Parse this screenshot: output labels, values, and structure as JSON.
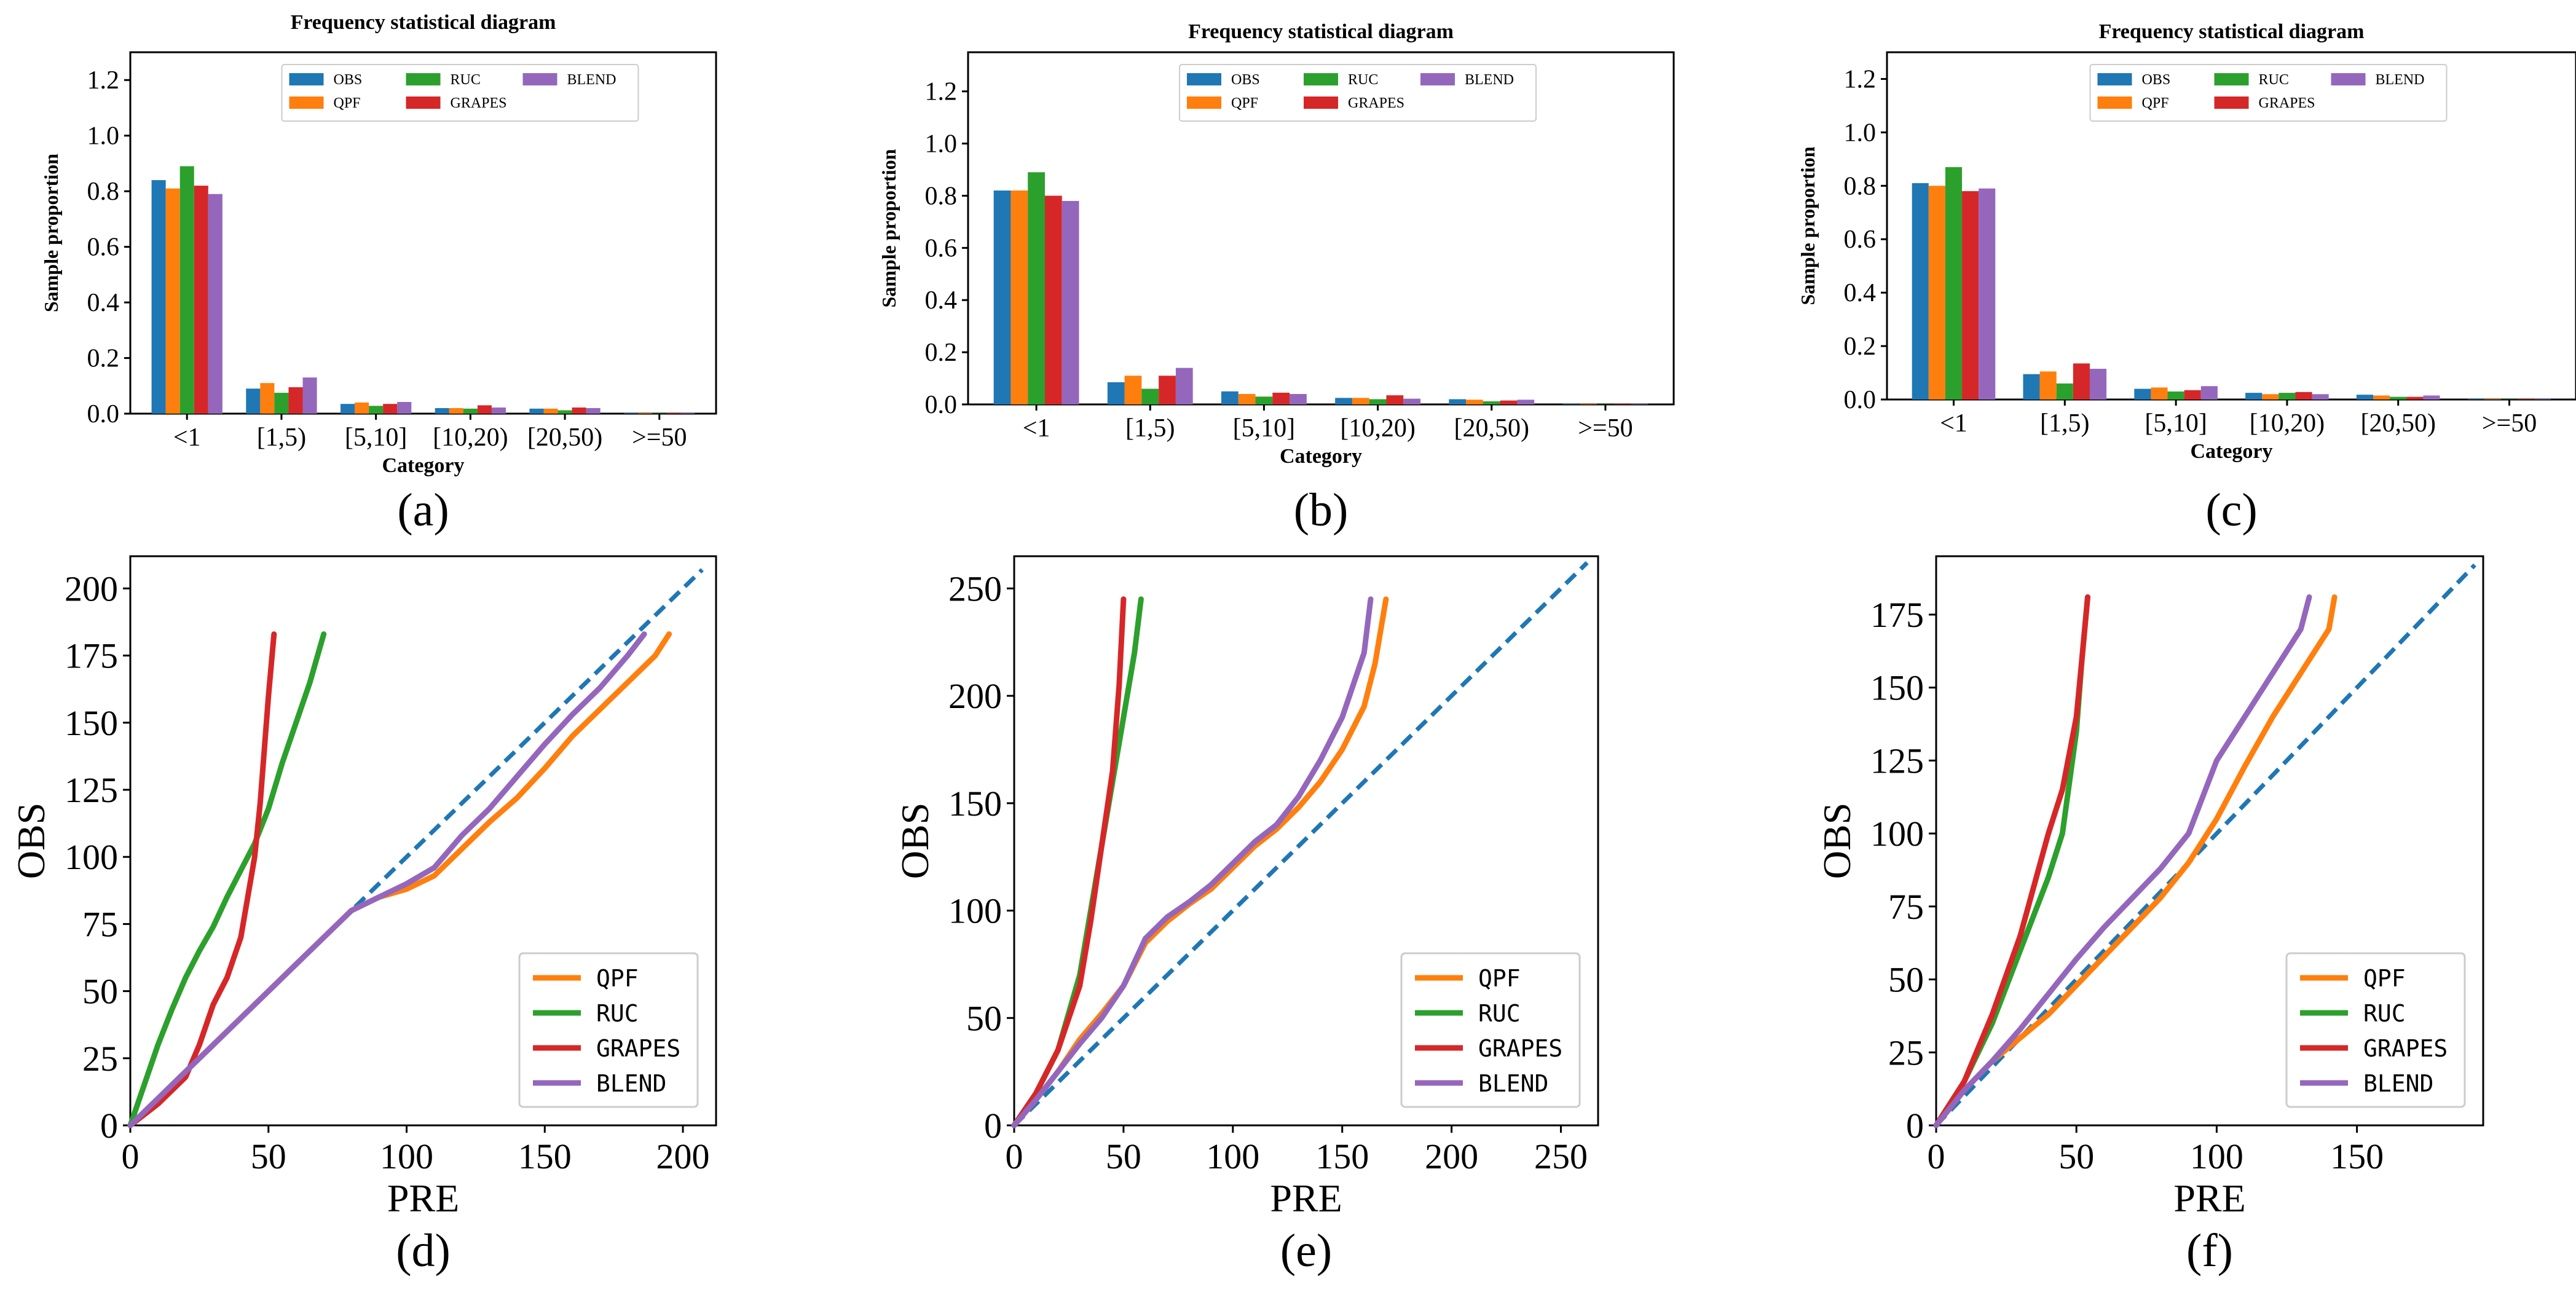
{
  "colors": {
    "OBS": "#1f77b4",
    "QPF": "#ff7f0e",
    "RUC": "#2ca02c",
    "GRAPES": "#d62728",
    "BLEND": "#9467bd",
    "diagonal": "#1f77b4",
    "axis": "#000000"
  },
  "chart_data": [
    {
      "id": "a",
      "panel_label": "(a)",
      "type": "bar",
      "title": "Frequency statistical diagram",
      "xlabel": "Category",
      "ylabel": "Sample proportion",
      "categories": [
        "<1",
        "[1,5)",
        "[5,10]",
        "[10,20)",
        "[20,50)",
        ">=50"
      ],
      "ylim": [
        0,
        1.3
      ],
      "yticks": [
        0.0,
        0.2,
        0.4,
        0.6,
        0.8,
        1.0,
        1.2
      ],
      "ytick_labels": [
        "0.0",
        "0.2",
        "0.4",
        "0.6",
        "0.8",
        "1.0",
        "1.2"
      ],
      "legend_position": "top-center",
      "series": [
        {
          "name": "OBS",
          "values": [
            0.84,
            0.09,
            0.035,
            0.02,
            0.018,
            0.002
          ]
        },
        {
          "name": "QPF",
          "values": [
            0.81,
            0.11,
            0.04,
            0.02,
            0.018,
            0.002
          ]
        },
        {
          "name": "RUC",
          "values": [
            0.89,
            0.075,
            0.028,
            0.018,
            0.012,
            0.001
          ]
        },
        {
          "name": "GRAPES",
          "values": [
            0.82,
            0.095,
            0.035,
            0.03,
            0.022,
            0.002
          ]
        },
        {
          "name": "BLEND",
          "values": [
            0.79,
            0.13,
            0.042,
            0.022,
            0.02,
            0.002
          ]
        }
      ]
    },
    {
      "id": "b",
      "panel_label": "(b)",
      "type": "bar",
      "title": "Frequency statistical diagram",
      "xlabel": "Category",
      "ylabel": "Sample proportion",
      "categories": [
        "<1",
        "[1,5)",
        "[5,10]",
        "[10,20)",
        "[20,50)",
        ">=50"
      ],
      "ylim": [
        0,
        1.35
      ],
      "yticks": [
        0.0,
        0.2,
        0.4,
        0.6,
        0.8,
        1.0,
        1.2
      ],
      "ytick_labels": [
        "0.0",
        "0.2",
        "0.4",
        "0.6",
        "0.8",
        "1.0",
        "1.2"
      ],
      "legend_position": "top-center",
      "series": [
        {
          "name": "OBS",
          "values": [
            0.82,
            0.085,
            0.05,
            0.025,
            0.02,
            0.002
          ]
        },
        {
          "name": "QPF",
          "values": [
            0.82,
            0.11,
            0.04,
            0.025,
            0.018,
            0.002
          ]
        },
        {
          "name": "RUC",
          "values": [
            0.89,
            0.06,
            0.03,
            0.02,
            0.012,
            0.001
          ]
        },
        {
          "name": "GRAPES",
          "values": [
            0.8,
            0.11,
            0.045,
            0.035,
            0.015,
            0.002
          ]
        },
        {
          "name": "BLEND",
          "values": [
            0.78,
            0.14,
            0.04,
            0.022,
            0.018,
            0.002
          ]
        }
      ]
    },
    {
      "id": "c",
      "panel_label": "(c)",
      "type": "bar",
      "title": "Frequency statistical diagram",
      "xlabel": "Category",
      "ylabel": "Sample proportion",
      "categories": [
        "<1",
        "[1,5)",
        "[5,10]",
        "[10,20)",
        "[20,50)",
        ">=50"
      ],
      "ylim": [
        0,
        1.3
      ],
      "yticks": [
        0.0,
        0.2,
        0.4,
        0.6,
        0.8,
        1.0,
        1.2
      ],
      "ytick_labels": [
        "0.0",
        "0.2",
        "0.4",
        "0.6",
        "0.8",
        "1.0",
        "1.2"
      ],
      "legend_position": "top-center",
      "series": [
        {
          "name": "OBS",
          "values": [
            0.81,
            0.095,
            0.04,
            0.025,
            0.018,
            0.002
          ]
        },
        {
          "name": "QPF",
          "values": [
            0.8,
            0.105,
            0.045,
            0.02,
            0.015,
            0.002
          ]
        },
        {
          "name": "RUC",
          "values": [
            0.87,
            0.06,
            0.03,
            0.025,
            0.01,
            0.001
          ]
        },
        {
          "name": "GRAPES",
          "values": [
            0.78,
            0.135,
            0.035,
            0.028,
            0.01,
            0.002
          ]
        },
        {
          "name": "BLEND",
          "values": [
            0.79,
            0.115,
            0.05,
            0.02,
            0.015,
            0.002
          ]
        }
      ]
    },
    {
      "id": "d",
      "panel_label": "(d)",
      "type": "line",
      "xlabel": "PRE",
      "ylabel": "OBS",
      "xlim": [
        0,
        212
      ],
      "ylim": [
        0,
        212
      ],
      "xticks": [
        0,
        50,
        100,
        150,
        200
      ],
      "xtick_labels": [
        "0",
        "50",
        "100",
        "150",
        "200"
      ],
      "yticks": [
        0,
        25,
        50,
        75,
        100,
        125,
        150,
        175,
        200
      ],
      "ytick_labels": [
        "0",
        "25",
        "50",
        "75",
        "100",
        "125",
        "150",
        "175",
        "200"
      ],
      "reference_line": {
        "style": "dashed",
        "x": [
          0,
          207
        ],
        "y": [
          0,
          207
        ]
      },
      "legend_position": "bottom-right",
      "series": [
        {
          "name": "QPF",
          "x": [
            0,
            10,
            20,
            30,
            40,
            50,
            60,
            70,
            80,
            90,
            100,
            110,
            120,
            130,
            140,
            150,
            160,
            170,
            180,
            190,
            195
          ],
          "y": [
            0,
            10,
            20,
            30,
            40,
            50,
            60,
            70,
            80,
            85,
            88,
            93,
            103,
            113,
            122,
            133,
            145,
            155,
            165,
            175,
            183
          ]
        },
        {
          "name": "RUC",
          "x": [
            0,
            5,
            10,
            15,
            20,
            25,
            30,
            35,
            40,
            45,
            50,
            55,
            60,
            65,
            70
          ],
          "y": [
            0,
            15,
            30,
            43,
            55,
            65,
            74,
            85,
            95,
            105,
            118,
            135,
            150,
            165,
            183
          ]
        },
        {
          "name": "GRAPES",
          "x": [
            0,
            10,
            20,
            25,
            30,
            35,
            40,
            45,
            47,
            50,
            52
          ],
          "y": [
            0,
            8,
            18,
            30,
            45,
            55,
            70,
            100,
            120,
            160,
            183
          ]
        },
        {
          "name": "BLEND",
          "x": [
            0,
            10,
            20,
            30,
            40,
            50,
            60,
            70,
            80,
            90,
            100,
            110,
            120,
            130,
            140,
            150,
            160,
            170,
            180,
            186
          ],
          "y": [
            0,
            10,
            20,
            30,
            40,
            50,
            60,
            70,
            80,
            85,
            90,
            96,
            108,
            118,
            130,
            142,
            153,
            163,
            175,
            183
          ]
        }
      ]
    },
    {
      "id": "e",
      "panel_label": "(e)",
      "type": "line",
      "xlabel": "PRE",
      "ylabel": "OBS",
      "xlim": [
        0,
        267
      ],
      "ylim": [
        0,
        265
      ],
      "xticks": [
        0,
        50,
        100,
        150,
        200,
        250
      ],
      "xtick_labels": [
        "0",
        "50",
        "100",
        "150",
        "200",
        "250"
      ],
      "yticks": [
        0,
        50,
        100,
        150,
        200,
        250
      ],
      "ytick_labels": [
        "0",
        "50",
        "100",
        "150",
        "200",
        "250"
      ],
      "reference_line": {
        "style": "dashed",
        "x": [
          0,
          262
        ],
        "y": [
          0,
          262
        ]
      },
      "legend_position": "bottom-right",
      "series": [
        {
          "name": "QPF",
          "x": [
            0,
            10,
            20,
            30,
            40,
            50,
            60,
            70,
            80,
            90,
            100,
            110,
            120,
            130,
            140,
            150,
            160,
            165,
            170
          ],
          "y": [
            0,
            12,
            25,
            40,
            52,
            65,
            85,
            95,
            103,
            110,
            120,
            130,
            138,
            148,
            160,
            175,
            195,
            215,
            245
          ]
        },
        {
          "name": "RUC",
          "x": [
            0,
            10,
            20,
            30,
            35,
            40,
            45,
            50,
            55,
            58
          ],
          "y": [
            0,
            15,
            35,
            70,
            100,
            130,
            160,
            190,
            220,
            245
          ]
        },
        {
          "name": "GRAPES",
          "x": [
            0,
            10,
            20,
            30,
            35,
            40,
            45,
            48,
            50
          ],
          "y": [
            0,
            15,
            35,
            65,
            95,
            130,
            165,
            205,
            245
          ]
        },
        {
          "name": "BLEND",
          "x": [
            0,
            10,
            20,
            30,
            40,
            50,
            60,
            70,
            80,
            90,
            100,
            110,
            120,
            130,
            140,
            150,
            160,
            163
          ],
          "y": [
            0,
            12,
            25,
            38,
            50,
            65,
            87,
            97,
            104,
            112,
            122,
            132,
            140,
            153,
            170,
            190,
            220,
            245
          ]
        }
      ]
    },
    {
      "id": "f",
      "panel_label": "(f)",
      "type": "line",
      "xlabel": "PRE",
      "ylabel": "OBS",
      "xlim": [
        0,
        195
      ],
      "ylim": [
        0,
        195
      ],
      "xticks": [
        0,
        50,
        100,
        150
      ],
      "xtick_labels": [
        "0",
        "50",
        "100",
        "150"
      ],
      "yticks": [
        0,
        25,
        50,
        75,
        100,
        125,
        150,
        175
      ],
      "ytick_labels": [
        "0",
        "25",
        "50",
        "75",
        "100",
        "125",
        "150",
        "175"
      ],
      "reference_line": {
        "style": "dashed",
        "x": [
          0,
          192
        ],
        "y": [
          0,
          192
        ]
      },
      "legend_position": "bottom-right",
      "series": [
        {
          "name": "QPF",
          "x": [
            0,
            10,
            20,
            30,
            40,
            50,
            60,
            70,
            80,
            90,
            100,
            110,
            120,
            130,
            140,
            142
          ],
          "y": [
            0,
            12,
            22,
            30,
            38,
            48,
            58,
            68,
            78,
            90,
            105,
            123,
            140,
            155,
            170,
            181
          ]
        },
        {
          "name": "RUC",
          "x": [
            0,
            10,
            20,
            30,
            40,
            45,
            50,
            52,
            54
          ],
          "y": [
            0,
            15,
            35,
            60,
            85,
            100,
            135,
            160,
            181
          ]
        },
        {
          "name": "GRAPES",
          "x": [
            0,
            10,
            20,
            30,
            40,
            45,
            50,
            52,
            54
          ],
          "y": [
            0,
            15,
            38,
            65,
            100,
            115,
            140,
            160,
            181
          ]
        },
        {
          "name": "BLEND",
          "x": [
            0,
            10,
            20,
            30,
            40,
            50,
            60,
            70,
            80,
            90,
            100,
            110,
            120,
            130,
            133
          ],
          "y": [
            0,
            12,
            22,
            33,
            45,
            57,
            68,
            78,
            88,
            100,
            125,
            140,
            155,
            170,
            181
          ]
        }
      ]
    }
  ]
}
